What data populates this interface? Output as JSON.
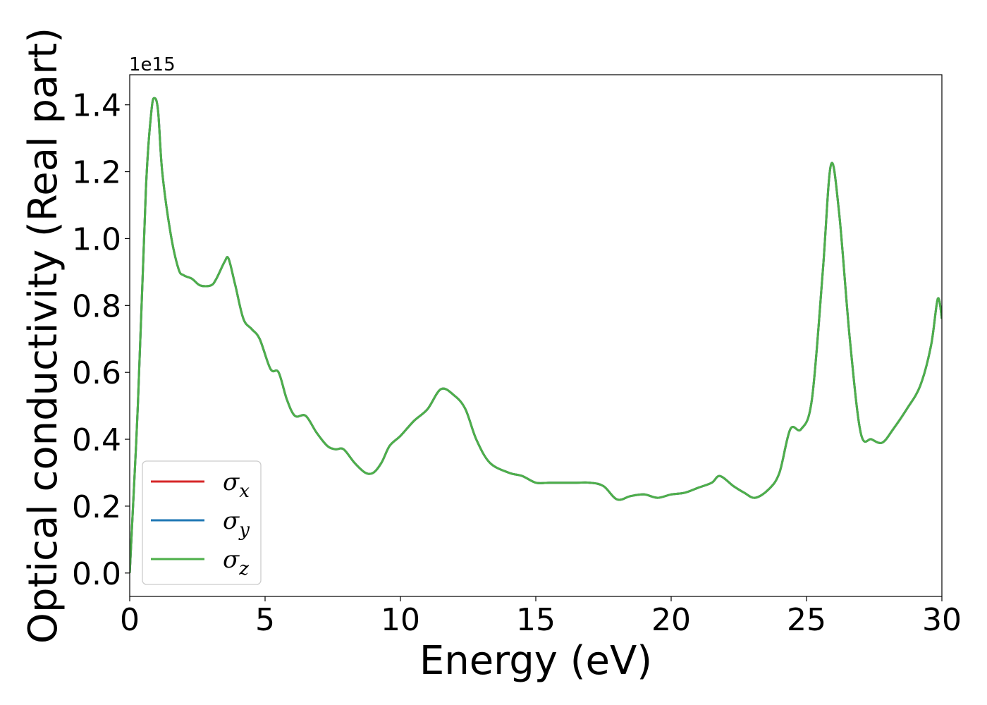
{
  "chart_data": {
    "type": "line",
    "xlabel": "Energy (eV)",
    "ylabel": "Optical conductivity (Real part)",
    "y_offset_text": "1e15",
    "xlim": [
      0,
      30
    ],
    "ylim": [
      -0.07,
      1.49
    ],
    "xticks": [
      0,
      5,
      10,
      15,
      20,
      25,
      30
    ],
    "xtick_labels": [
      "0",
      "5",
      "10",
      "15",
      "20",
      "25",
      "30"
    ],
    "yticks": [
      0.0,
      0.2,
      0.4,
      0.6,
      0.8,
      1.0,
      1.2,
      1.4
    ],
    "ytick_labels": [
      "0.0",
      "0.2",
      "0.4",
      "0.6",
      "0.8",
      "1.0",
      "1.2",
      "1.4"
    ],
    "grid": false,
    "legend_position": "lower-left",
    "x": [
      0,
      0.3,
      0.6,
      0.8,
      0.92,
      1.05,
      1.2,
      1.5,
      1.8,
      2.0,
      2.3,
      2.6,
      3.0,
      3.2,
      3.5,
      3.65,
      3.9,
      4.2,
      4.5,
      4.8,
      5.2,
      5.5,
      5.8,
      6.1,
      6.5,
      6.9,
      7.3,
      7.6,
      7.9,
      8.3,
      8.7,
      9.0,
      9.3,
      9.6,
      10.0,
      10.5,
      11.0,
      11.5,
      12.0,
      12.4,
      12.8,
      13.3,
      14.0,
      14.5,
      15.0,
      15.5,
      16.0,
      16.5,
      17.0,
      17.5,
      18.0,
      18.5,
      19.0,
      19.5,
      20.0,
      20.5,
      21.0,
      21.5,
      21.8,
      22.3,
      22.7,
      23.1,
      23.6,
      24.0,
      24.4,
      24.8,
      25.2,
      25.6,
      25.9,
      26.2,
      26.6,
      27.0,
      27.4,
      27.8,
      28.2,
      28.7,
      29.2,
      29.6,
      29.85,
      30.0
    ],
    "series": [
      {
        "name": "σx",
        "color": "#d62728"
      },
      {
        "name": "σy",
        "color": "#1f77b4"
      },
      {
        "name": "σz",
        "color": "#4daf4a",
        "values": [
          0.0,
          0.5,
          1.15,
          1.38,
          1.42,
          1.38,
          1.2,
          1.02,
          0.91,
          0.89,
          0.88,
          0.86,
          0.86,
          0.88,
          0.93,
          0.94,
          0.86,
          0.76,
          0.73,
          0.7,
          0.61,
          0.6,
          0.52,
          0.47,
          0.47,
          0.42,
          0.38,
          0.37,
          0.37,
          0.33,
          0.3,
          0.3,
          0.33,
          0.38,
          0.41,
          0.455,
          0.49,
          0.55,
          0.53,
          0.49,
          0.4,
          0.33,
          0.3,
          0.29,
          0.27,
          0.27,
          0.27,
          0.27,
          0.27,
          0.26,
          0.22,
          0.23,
          0.235,
          0.225,
          0.235,
          0.24,
          0.255,
          0.27,
          0.29,
          0.26,
          0.24,
          0.225,
          0.25,
          0.3,
          0.43,
          0.43,
          0.52,
          0.9,
          1.22,
          1.08,
          0.7,
          0.42,
          0.4,
          0.39,
          0.43,
          0.49,
          0.56,
          0.68,
          0.82,
          0.76
        ]
      }
    ]
  }
}
